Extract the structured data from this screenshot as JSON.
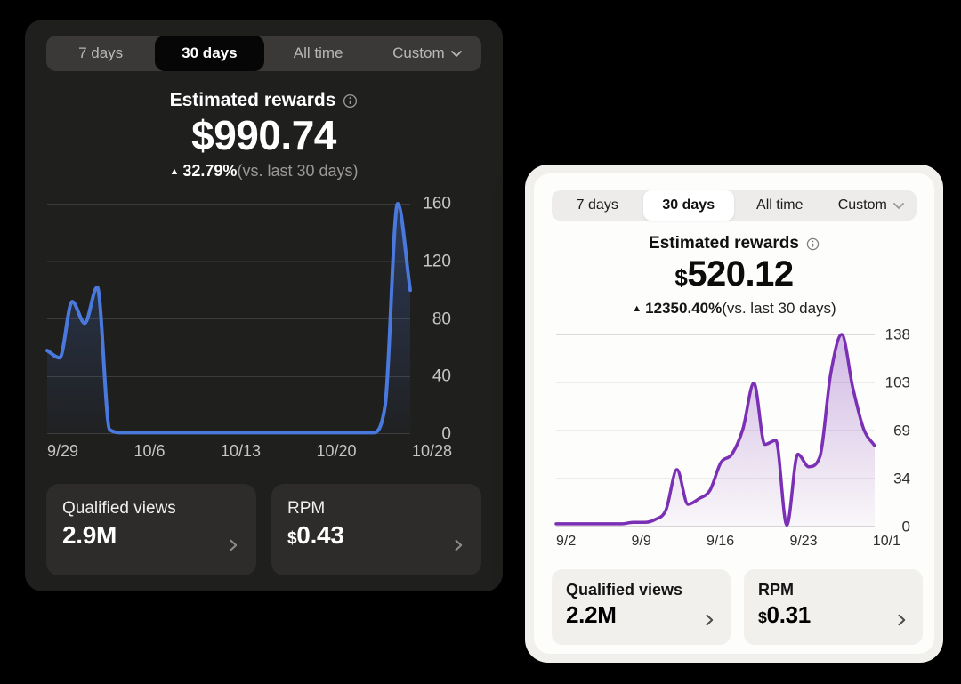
{
  "panels": [
    {
      "theme": "dark",
      "tabs": {
        "labels": [
          "7 days",
          "30 days",
          "All time",
          "Custom"
        ],
        "selected": "30 days"
      },
      "header": {
        "title": "Estimated rewards",
        "amount_currency": "$",
        "amount_value": "990.74",
        "delta_arrow": "▲",
        "delta_percent": "32.79%",
        "delta_suffix": "(vs. last 30 days)"
      },
      "stats": [
        {
          "label": "Qualified views",
          "currency": "",
          "value": "2.9M"
        },
        {
          "label": "RPM",
          "currency": "$",
          "value": "0.43"
        }
      ]
    },
    {
      "theme": "light",
      "tabs": {
        "labels": [
          "7 days",
          "30 days",
          "All time",
          "Custom"
        ],
        "selected": "30 days"
      },
      "header": {
        "title": "Estimated rewards",
        "amount_currency": "$",
        "amount_value": "520.12",
        "delta_arrow": "▲",
        "delta_percent": "12350.40%",
        "delta_suffix": "(vs. last 30 days)"
      },
      "stats": [
        {
          "label": "Qualified views",
          "currency": "",
          "value": "2.2M"
        },
        {
          "label": "RPM",
          "currency": "$",
          "value": "0.31"
        }
      ]
    }
  ],
  "chart_data": [
    {
      "type": "area",
      "title": "Estimated rewards — 30 days (dark panel)",
      "categories": [
        "9/29",
        "9/30",
        "10/1",
        "10/2",
        "10/3",
        "10/4",
        "10/5",
        "10/6",
        "10/7",
        "10/8",
        "10/9",
        "10/10",
        "10/11",
        "10/12",
        "10/13",
        "10/14",
        "10/15",
        "10/16",
        "10/17",
        "10/18",
        "10/19",
        "10/20",
        "10/21",
        "10/22",
        "10/23",
        "10/24",
        "10/25",
        "10/26",
        "10/27",
        "10/28"
      ],
      "values": [
        58,
        53,
        92,
        77,
        102,
        3,
        1,
        1,
        1,
        1,
        1,
        1,
        1,
        1,
        1,
        1,
        1,
        1,
        1,
        1,
        1,
        1,
        1,
        1,
        1,
        1,
        1,
        20,
        160,
        100
      ],
      "x_tick_labels": [
        "9/29",
        "10/6",
        "10/13",
        "10/20",
        "10/28"
      ],
      "yticks": [
        0,
        40,
        80,
        120,
        160
      ],
      "ylim": [
        0,
        160
      ],
      "xlabel": "",
      "ylabel": "",
      "grid": true,
      "legend": false,
      "line_color": "#4a79dd",
      "line_width": 4,
      "fill_from": "rgba(74,121,221,0.30)",
      "fill_to": "rgba(74,121,221,0.02)",
      "grid_color": "#3d3c3b"
    },
    {
      "type": "area",
      "title": "Estimated rewards — 30 days (light panel)",
      "categories": [
        "9/2",
        "9/3",
        "9/4",
        "9/5",
        "9/6",
        "9/7",
        "9/8",
        "9/9",
        "9/10",
        "9/11",
        "9/12",
        "9/13",
        "9/14",
        "9/15",
        "9/16",
        "9/17",
        "9/18",
        "9/19",
        "9/20",
        "9/21",
        "9/22",
        "9/23",
        "9/24",
        "9/25",
        "9/26",
        "9/27",
        "9/28",
        "9/29",
        "9/30",
        "10/1"
      ],
      "values": [
        2,
        2,
        2,
        2,
        2,
        2,
        2,
        3,
        3,
        5,
        12,
        41,
        16,
        20,
        26,
        46,
        52,
        70,
        103,
        59,
        62,
        1,
        52,
        43,
        50,
        110,
        138,
        100,
        70,
        58
      ],
      "x_tick_labels": [
        "9/2",
        "9/9",
        "9/16",
        "9/23",
        "10/1"
      ],
      "yticks": [
        0,
        34,
        69,
        103,
        138
      ],
      "ylim": [
        0,
        138
      ],
      "xlabel": "",
      "ylabel": "",
      "grid": true,
      "legend": false,
      "line_color": "#7a2fb5",
      "line_width": 3.5,
      "fill_from": "rgba(122,47,181,0.33)",
      "fill_to": "rgba(122,47,181,0.03)",
      "grid_color": "#dbdad7"
    }
  ]
}
